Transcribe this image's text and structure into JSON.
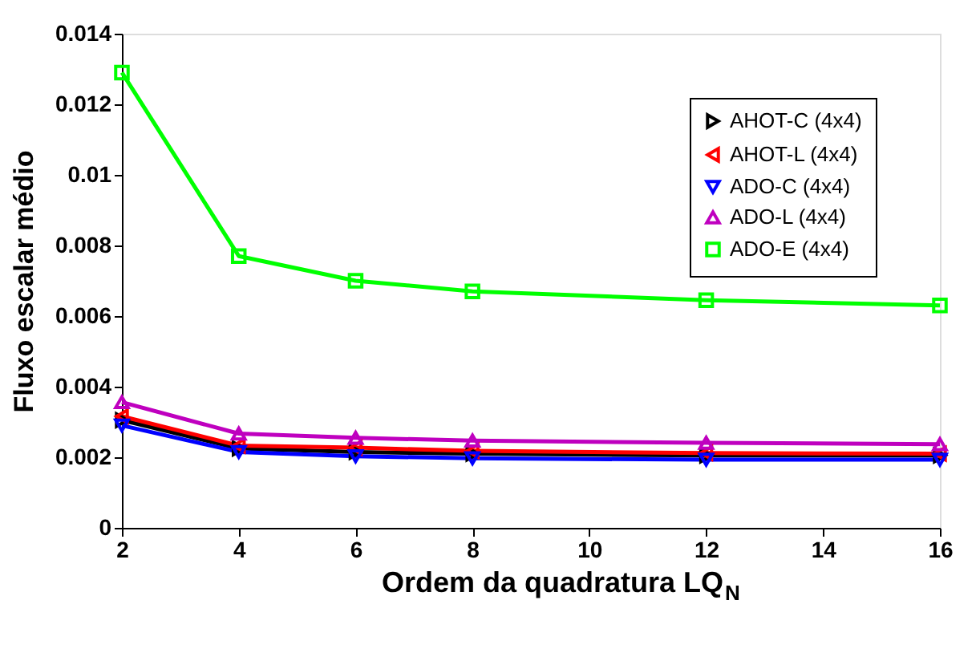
{
  "chart_data": {
    "type": "line",
    "xlabel": "Ordem da quadratura LQ$_{N}$",
    "ylabel": "Fluxo escalar médio",
    "x": [
      2,
      4,
      6,
      8,
      12,
      16
    ],
    "xlim": [
      2,
      16
    ],
    "xticks": [
      2,
      4,
      6,
      8,
      10,
      12,
      14,
      16
    ],
    "ylim": [
      0,
      0.014
    ],
    "yticks": [
      0,
      0.002,
      0.004,
      0.006,
      0.008,
      0.01,
      0.012,
      0.014
    ],
    "grid": false,
    "legend": "top right",
    "series": [
      {
        "name": "AHOT-C (4x4)",
        "color": "#000000",
        "marker": "triangle-right",
        "values": [
          0.00305,
          0.00225,
          0.00215,
          0.0021,
          0.00205,
          0.00205
        ]
      },
      {
        "name": "AHOT-L (4x4)",
        "color": "#ff0000",
        "marker": "triangle-left",
        "values": [
          0.00316,
          0.00233,
          0.00227,
          0.00218,
          0.00212,
          0.0021
        ]
      },
      {
        "name": "ADO-C (4x4)",
        "color": "#0000ff",
        "marker": "triangle-down",
        "values": [
          0.0029,
          0.00215,
          0.00203,
          0.00197,
          0.00193,
          0.00193
        ]
      },
      {
        "name": "ADO-L (4x4)",
        "color": "#bf00bf",
        "marker": "triangle-up",
        "values": [
          0.00356,
          0.00267,
          0.00255,
          0.00247,
          0.00241,
          0.00237
        ]
      },
      {
        "name": "ADO-E (4x4)",
        "color": "#00ff00",
        "marker": "square",
        "values": [
          0.0129,
          0.0077,
          0.007,
          0.0067,
          0.00645,
          0.0063
        ]
      }
    ]
  }
}
